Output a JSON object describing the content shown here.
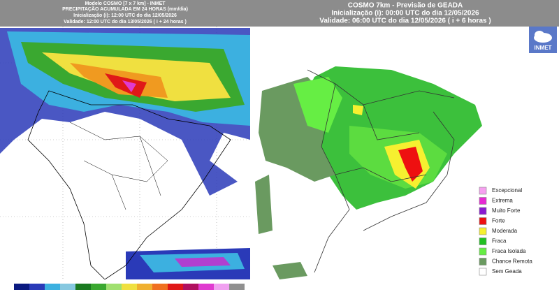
{
  "left_panel": {
    "title_lines": [
      "Modelo COSMO [7 x 7 km] - INMET",
      "PRECIPITAÇÃO ACUMULADA EM 24 HORAS (mm/dia)",
      "Inicialização (i): 12:00 UTC do dia 12/05/2026",
      "Validade: 12:00 UTC do dia 13/05/2026 ( i + 24 horas )"
    ]
  },
  "right_panel": {
    "title_lines": [
      "COSMO 7km - Previsão de GEADA",
      "Inicialização (i): 00:00 UTC do dia 12/05/2026",
      "Validade: 06:00 UTC do dia 12/05/2026 ( i + 6 horas )"
    ],
    "logo": "INMET",
    "legend": [
      {
        "label": "Excepcional",
        "color": "#f6a0f0"
      },
      {
        "label": "Extrema",
        "color": "#e62ad2"
      },
      {
        "label": "Muito Forte",
        "color": "#8a1ad0"
      },
      {
        "label": "Forte",
        "color": "#ee1010"
      },
      {
        "label": "Moderada",
        "color": "#f6f030"
      },
      {
        "label": "Fraca",
        "color": "#22c022"
      },
      {
        "label": "Fraca Isolada",
        "color": "#66ee44"
      },
      {
        "label": "Chance Remota",
        "color": "#6a9a60"
      },
      {
        "label": "Sem Geada",
        "color": "#ffffff"
      }
    ]
  }
}
